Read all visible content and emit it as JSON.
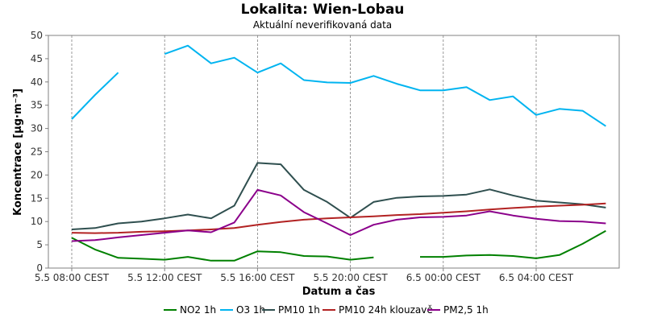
{
  "chart_data": {
    "type": "line",
    "title": "Lokalita: Wien-Lobau",
    "subtitle": "Aktuální neverifikovaná data",
    "xlabel": "Datum a čas",
    "ylabel": "Koncentrace [µg·m⁻³]",
    "ylim": [
      0,
      50
    ],
    "yticks": [
      0,
      5,
      10,
      15,
      20,
      25,
      30,
      35,
      40,
      45,
      50
    ],
    "xlim": [
      "5.5 08:00",
      "6.5 07:00"
    ],
    "xticks": [
      {
        "t": "5.5 08:00",
        "label": "5.5 08:00 CEST"
      },
      {
        "t": "5.5 12:00",
        "label": "5.5 12:00 CEST"
      },
      {
        "t": "5.5 16:00",
        "label": "5.5 16:00 CEST"
      },
      {
        "t": "5.5 20:00",
        "label": "5.5 20:00 CEST"
      },
      {
        "t": "6.5 00:00",
        "label": "6.5 00:00 CEST"
      },
      {
        "t": "6.5 04:00",
        "label": "6.5 04:00 CEST"
      }
    ],
    "grid": "vertical-dashed",
    "legend": "bottom",
    "x": [
      "5.5 08:00",
      "5.5 09:00",
      "5.5 10:00",
      "5.5 11:00",
      "5.5 12:00",
      "5.5 13:00",
      "5.5 14:00",
      "5.5 15:00",
      "5.5 16:00",
      "5.5 17:00",
      "5.5 18:00",
      "5.5 19:00",
      "5.5 20:00",
      "5.5 21:00",
      "5.5 22:00",
      "5.5 23:00",
      "6.5 00:00",
      "6.5 01:00",
      "6.5 02:00",
      "6.5 03:00",
      "6.5 04:00",
      "6.5 05:00",
      "6.5 06:00",
      "6.5 07:00"
    ],
    "series": [
      {
        "name": "NO2 1h",
        "color": "#008000",
        "values": [
          6.5,
          4.0,
          2.2,
          2.0,
          1.8,
          2.4,
          1.6,
          1.6,
          3.6,
          3.4,
          2.6,
          2.5,
          1.8,
          2.3,
          null,
          2.4,
          2.4,
          2.7,
          2.8,
          2.6,
          2.1,
          2.8,
          5.2,
          8.0
        ]
      },
      {
        "name": "O3 1h",
        "color": "#00B4F0",
        "values": [
          32.0,
          37.2,
          42.0,
          null,
          46.0,
          47.8,
          44.0,
          45.2,
          42.0,
          44.0,
          40.4,
          39.9,
          39.8,
          41.3,
          39.6,
          38.2,
          38.2,
          38.9,
          36.1,
          36.9,
          32.9,
          34.2,
          33.8,
          30.5
        ]
      },
      {
        "name": "PM10 1h",
        "color": "#2F4F4F",
        "values": [
          8.3,
          8.6,
          9.6,
          10.0,
          10.7,
          11.5,
          10.7,
          13.4,
          22.6,
          22.3,
          16.8,
          14.2,
          10.8,
          14.2,
          15.1,
          15.4,
          15.5,
          15.8,
          16.9,
          15.6,
          14.5,
          14.1,
          13.7,
          13.0
        ]
      },
      {
        "name": "PM10 24h klouzavě",
        "color": "#B22222",
        "values": [
          7.6,
          7.5,
          7.6,
          7.8,
          7.9,
          8.1,
          8.3,
          8.6,
          9.3,
          9.9,
          10.4,
          10.7,
          10.9,
          11.1,
          11.4,
          11.6,
          11.9,
          12.2,
          12.6,
          12.9,
          13.2,
          13.4,
          13.6,
          13.9
        ]
      },
      {
        "name": "PM2,5 1h",
        "color": "#8B008B",
        "values": [
          5.8,
          6.0,
          6.6,
          7.1,
          7.6,
          8.1,
          7.7,
          9.8,
          16.8,
          15.6,
          12.0,
          9.6,
          7.1,
          9.3,
          10.4,
          10.9,
          11.0,
          11.3,
          12.2,
          11.3,
          10.6,
          10.1,
          10.0,
          9.6
        ]
      }
    ]
  }
}
